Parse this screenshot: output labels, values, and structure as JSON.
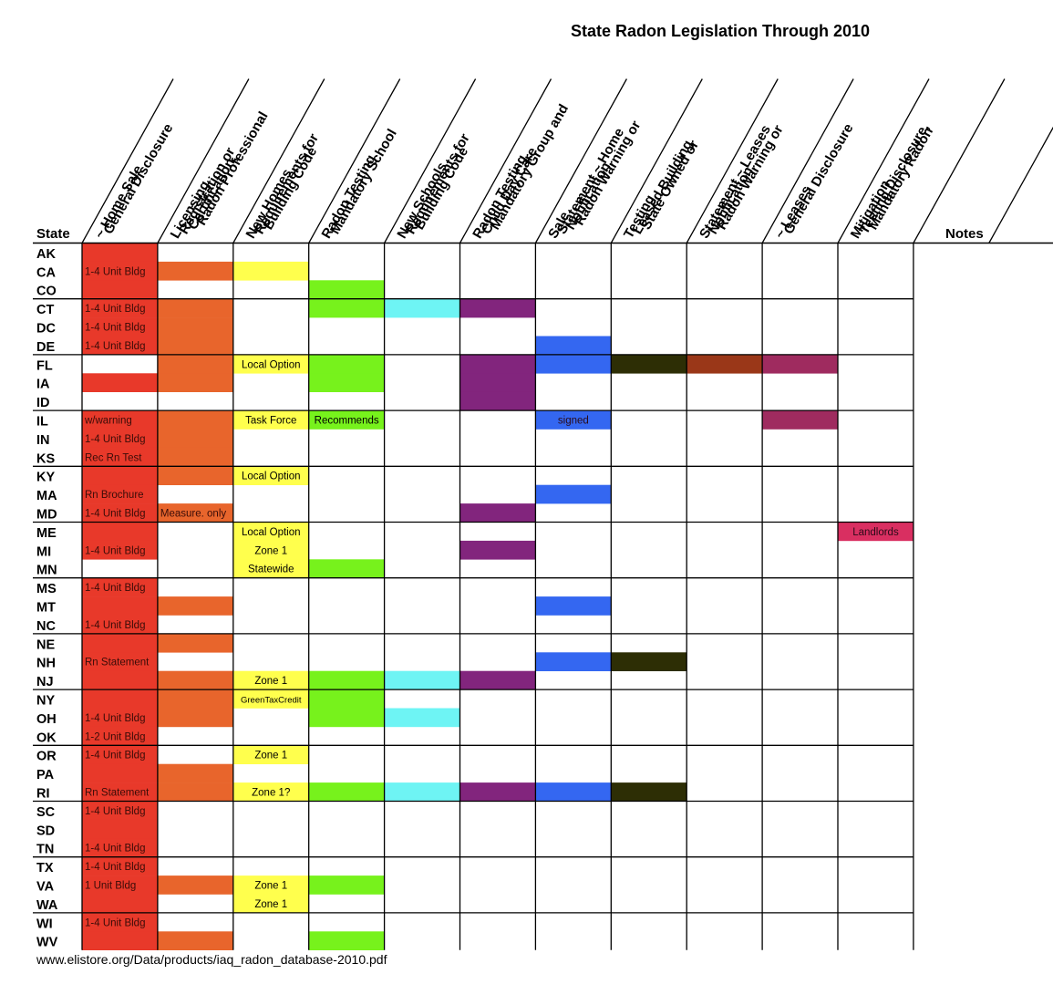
{
  "chart_data": {
    "type": "table",
    "title": "State Radon Legislation Through 2010",
    "state_header": "State",
    "notes_header": "Notes",
    "columns": [
      "General Disclosure ~ Home Sale",
      "Radon Professional Certification, Registration or Licensing",
      "Building Code Requirements for New Homes",
      "Mandatory School Radon Testing",
      "Building Code Requirements for New Schools",
      "Mandatory Group and Child Day Care Radon Testing",
      "Radon Warning or Notification Statement ~ Home Sale",
      "State Owned or Leased Building Testing",
      "Radon Warning or Notification Statement ~ Leases",
      "General Disclosure ~ Leases",
      "Mandatory Radon Testing,Disclosure, Mitigation"
    ],
    "states": [
      "AK",
      "CA",
      "CO",
      "CT",
      "DC",
      "DE",
      "FL",
      "IA",
      "ID",
      "IL",
      "IN",
      "KS",
      "KY",
      "MA",
      "MD",
      "ME",
      "MI",
      "MN",
      "MS",
      "MT",
      "NC",
      "NE",
      "NH",
      "NJ",
      "NY",
      "OH",
      "OK",
      "OR",
      "PA",
      "RI",
      "SC",
      "SD",
      "TN",
      "TX",
      "VA",
      "WA",
      "WI",
      "WV"
    ],
    "column_colors": [
      "#e8392a",
      "#e8652c",
      "#ffff4d",
      "#77f21c",
      "#6ef4f4",
      "#82257d",
      "#3467f1",
      "#2d2e05",
      "#9a3718",
      "#9f2b5f",
      "#d92f61"
    ],
    "cells": [
      {
        "state": "AK",
        "col": 0,
        "text": ""
      },
      {
        "state": "CA",
        "col": 0,
        "text": "1-4 Unit Bldg"
      },
      {
        "state": "CA",
        "col": 1,
        "text": ""
      },
      {
        "state": "CA",
        "col": 2,
        "text": ""
      },
      {
        "state": "CO",
        "col": 0,
        "text": ""
      },
      {
        "state": "CO",
        "col": 3,
        "text": ""
      },
      {
        "state": "CT",
        "col": 0,
        "text": "1-4 Unit Bldg"
      },
      {
        "state": "CT",
        "col": 1,
        "text": ""
      },
      {
        "state": "CT",
        "col": 3,
        "text": ""
      },
      {
        "state": "CT",
        "col": 4,
        "text": ""
      },
      {
        "state": "CT",
        "col": 5,
        "text": ""
      },
      {
        "state": "DC",
        "col": 0,
        "text": "1-4 Unit Bldg"
      },
      {
        "state": "DC",
        "col": 1,
        "text": ""
      },
      {
        "state": "DE",
        "col": 0,
        "text": "1-4 Unit Bldg"
      },
      {
        "state": "DE",
        "col": 1,
        "text": ""
      },
      {
        "state": "DE",
        "col": 6,
        "text": ""
      },
      {
        "state": "FL",
        "col": 1,
        "text": ""
      },
      {
        "state": "FL",
        "col": 2,
        "text": "Local Option"
      },
      {
        "state": "FL",
        "col": 3,
        "text": ""
      },
      {
        "state": "FL",
        "col": 5,
        "text": ""
      },
      {
        "state": "FL",
        "col": 6,
        "text": ""
      },
      {
        "state": "FL",
        "col": 7,
        "text": ""
      },
      {
        "state": "FL",
        "col": 8,
        "text": ""
      },
      {
        "state": "FL",
        "col": 9,
        "text": ""
      },
      {
        "state": "IA",
        "col": 0,
        "text": ""
      },
      {
        "state": "IA",
        "col": 1,
        "text": ""
      },
      {
        "state": "IA",
        "col": 3,
        "text": ""
      },
      {
        "state": "IA",
        "col": 5,
        "text": ""
      },
      {
        "state": "ID",
        "col": 5,
        "text": ""
      },
      {
        "state": "IL",
        "col": 0,
        "text": "w/warning"
      },
      {
        "state": "IL",
        "col": 1,
        "text": ""
      },
      {
        "state": "IL",
        "col": 2,
        "text": "Task Force"
      },
      {
        "state": "IL",
        "col": 3,
        "text": "Recommends"
      },
      {
        "state": "IL",
        "col": 6,
        "text": "signed"
      },
      {
        "state": "IL",
        "col": 9,
        "text": ""
      },
      {
        "state": "IN",
        "col": 0,
        "text": "1-4 Unit Bldg"
      },
      {
        "state": "IN",
        "col": 1,
        "text": ""
      },
      {
        "state": "KS",
        "col": 0,
        "text": "Rec Rn Test"
      },
      {
        "state": "KS",
        "col": 1,
        "text": ""
      },
      {
        "state": "KY",
        "col": 0,
        "text": ""
      },
      {
        "state": "KY",
        "col": 1,
        "text": ""
      },
      {
        "state": "KY",
        "col": 2,
        "text": "Local Option"
      },
      {
        "state": "MA",
        "col": 0,
        "text": "Rn Brochure"
      },
      {
        "state": "MA",
        "col": 6,
        "text": ""
      },
      {
        "state": "MD",
        "col": 0,
        "text": "1-4 Unit Bldg"
      },
      {
        "state": "MD",
        "col": 1,
        "text": "Measure. only"
      },
      {
        "state": "MD",
        "col": 5,
        "text": ""
      },
      {
        "state": "ME",
        "col": 0,
        "text": ""
      },
      {
        "state": "ME",
        "col": 2,
        "text": "Local Option"
      },
      {
        "state": "ME",
        "col": 10,
        "text": "Landlords"
      },
      {
        "state": "MI",
        "col": 0,
        "text": "1-4 Unit Bldg"
      },
      {
        "state": "MI",
        "col": 2,
        "text": "Zone 1"
      },
      {
        "state": "MI",
        "col": 5,
        "text": ""
      },
      {
        "state": "MN",
        "col": 2,
        "text": "Statewide"
      },
      {
        "state": "MN",
        "col": 3,
        "text": ""
      },
      {
        "state": "MS",
        "col": 0,
        "text": "1-4 Unit Bldg"
      },
      {
        "state": "MT",
        "col": 0,
        "text": ""
      },
      {
        "state": "MT",
        "col": 1,
        "text": ""
      },
      {
        "state": "MT",
        "col": 6,
        "text": ""
      },
      {
        "state": "NC",
        "col": 0,
        "text": "1-4 Unit Bldg"
      },
      {
        "state": "NE",
        "col": 0,
        "text": ""
      },
      {
        "state": "NE",
        "col": 1,
        "text": ""
      },
      {
        "state": "NH",
        "col": 0,
        "text": "Rn Statement"
      },
      {
        "state": "NH",
        "col": 6,
        "text": ""
      },
      {
        "state": "NH",
        "col": 7,
        "text": ""
      },
      {
        "state": "NJ",
        "col": 0,
        "text": ""
      },
      {
        "state": "NJ",
        "col": 1,
        "text": ""
      },
      {
        "state": "NJ",
        "col": 2,
        "text": "Zone 1"
      },
      {
        "state": "NJ",
        "col": 3,
        "text": ""
      },
      {
        "state": "NJ",
        "col": 4,
        "text": ""
      },
      {
        "state": "NJ",
        "col": 5,
        "text": ""
      },
      {
        "state": "NY",
        "col": 0,
        "text": ""
      },
      {
        "state": "NY",
        "col": 1,
        "text": ""
      },
      {
        "state": "NY",
        "col": 2,
        "text": "GreenTaxCredit"
      },
      {
        "state": "NY",
        "col": 3,
        "text": ""
      },
      {
        "state": "OH",
        "col": 0,
        "text": "1-4 Unit Bldg"
      },
      {
        "state": "OH",
        "col": 1,
        "text": ""
      },
      {
        "state": "OH",
        "col": 3,
        "text": ""
      },
      {
        "state": "OH",
        "col": 4,
        "text": ""
      },
      {
        "state": "OK",
        "col": 0,
        "text": "1-2 Unit Bldg"
      },
      {
        "state": "OR",
        "col": 0,
        "text": "1-4 Unit Bldg"
      },
      {
        "state": "OR",
        "col": 2,
        "text": "Zone 1"
      },
      {
        "state": "PA",
        "col": 0,
        "text": ""
      },
      {
        "state": "PA",
        "col": 1,
        "text": ""
      },
      {
        "state": "RI",
        "col": 0,
        "text": "Rn Statement"
      },
      {
        "state": "RI",
        "col": 1,
        "text": ""
      },
      {
        "state": "RI",
        "col": 2,
        "text": "Zone 1?"
      },
      {
        "state": "RI",
        "col": 3,
        "text": ""
      },
      {
        "state": "RI",
        "col": 4,
        "text": ""
      },
      {
        "state": "RI",
        "col": 5,
        "text": ""
      },
      {
        "state": "RI",
        "col": 6,
        "text": ""
      },
      {
        "state": "RI",
        "col": 7,
        "text": ""
      },
      {
        "state": "SC",
        "col": 0,
        "text": "1-4 Unit Bldg"
      },
      {
        "state": "SD",
        "col": 0,
        "text": ""
      },
      {
        "state": "TN",
        "col": 0,
        "text": "1-4 Unit Bldg"
      },
      {
        "state": "TX",
        "col": 0,
        "text": "1-4 Unit Bldg"
      },
      {
        "state": "VA",
        "col": 0,
        "text": "1 Unit Bldg"
      },
      {
        "state": "VA",
        "col": 1,
        "text": ""
      },
      {
        "state": "VA",
        "col": 2,
        "text": "Zone 1"
      },
      {
        "state": "VA",
        "col": 3,
        "text": ""
      },
      {
        "state": "WA",
        "col": 0,
        "text": ""
      },
      {
        "state": "WA",
        "col": 2,
        "text": "Zone 1"
      },
      {
        "state": "WI",
        "col": 0,
        "text": "1-4 Unit Bldg"
      },
      {
        "state": "WV",
        "col": 0,
        "text": ""
      },
      {
        "state": "WV",
        "col": 1,
        "text": ""
      },
      {
        "state": "WV",
        "col": 3,
        "text": ""
      }
    ],
    "source": "www.elistore.org/Data/products/iaq_radon_database-2010.pdf"
  }
}
